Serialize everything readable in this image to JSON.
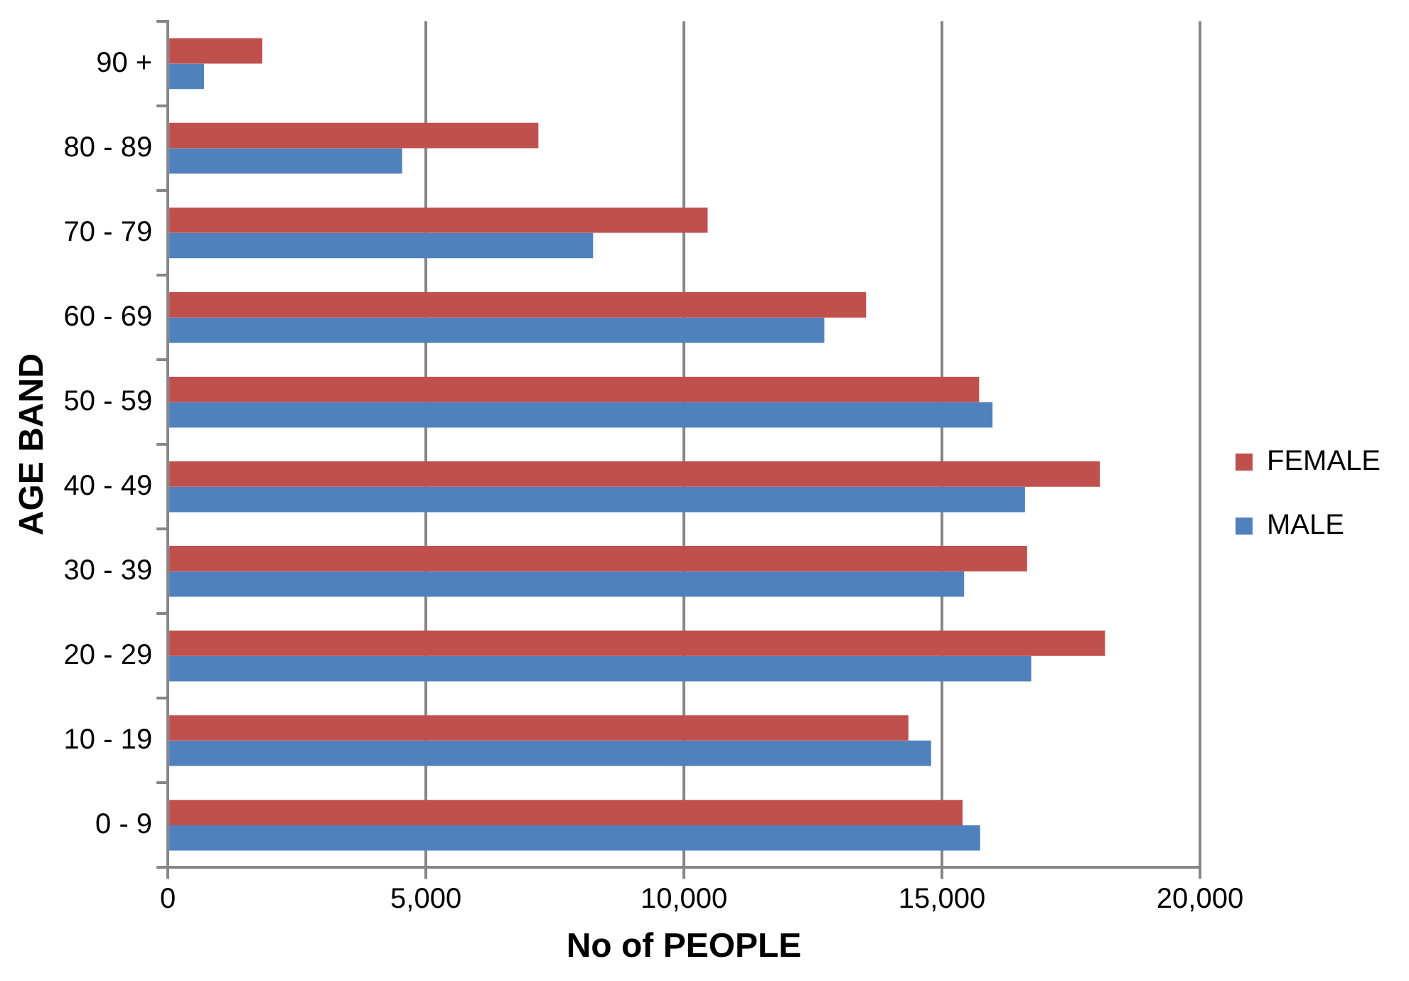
{
  "chart_data": {
    "type": "bar",
    "orientation": "horizontal",
    "xlabel": "No of PEOPLE",
    "ylabel": "AGE BAND",
    "categories": [
      "90 +",
      "80 - 89",
      "70 - 79",
      "60 - 69",
      "50 - 59",
      "40 - 49",
      "30 - 39",
      "20 - 29",
      "10 - 19",
      "0 - 9"
    ],
    "series": [
      {
        "name": "FEMALE",
        "color": "#c0504d",
        "values": [
          1830,
          7180,
          10460,
          13530,
          15720,
          18060,
          16650,
          18160,
          14350,
          15400
        ]
      },
      {
        "name": "MALE",
        "color": "#4f81bd",
        "values": [
          700,
          4540,
          8240,
          12720,
          15980,
          16610,
          15430,
          16730,
          14790,
          15740
        ]
      }
    ],
    "xlim": [
      0,
      20000
    ],
    "xticks": [
      {
        "value": 0,
        "label": "0"
      },
      {
        "value": 5000,
        "label": "5,000"
      },
      {
        "value": 10000,
        "label": "10,000"
      },
      {
        "value": 15000,
        "label": "15,000"
      },
      {
        "value": 20000,
        "label": "20,000"
      }
    ],
    "grid": "x",
    "legend": "right"
  }
}
